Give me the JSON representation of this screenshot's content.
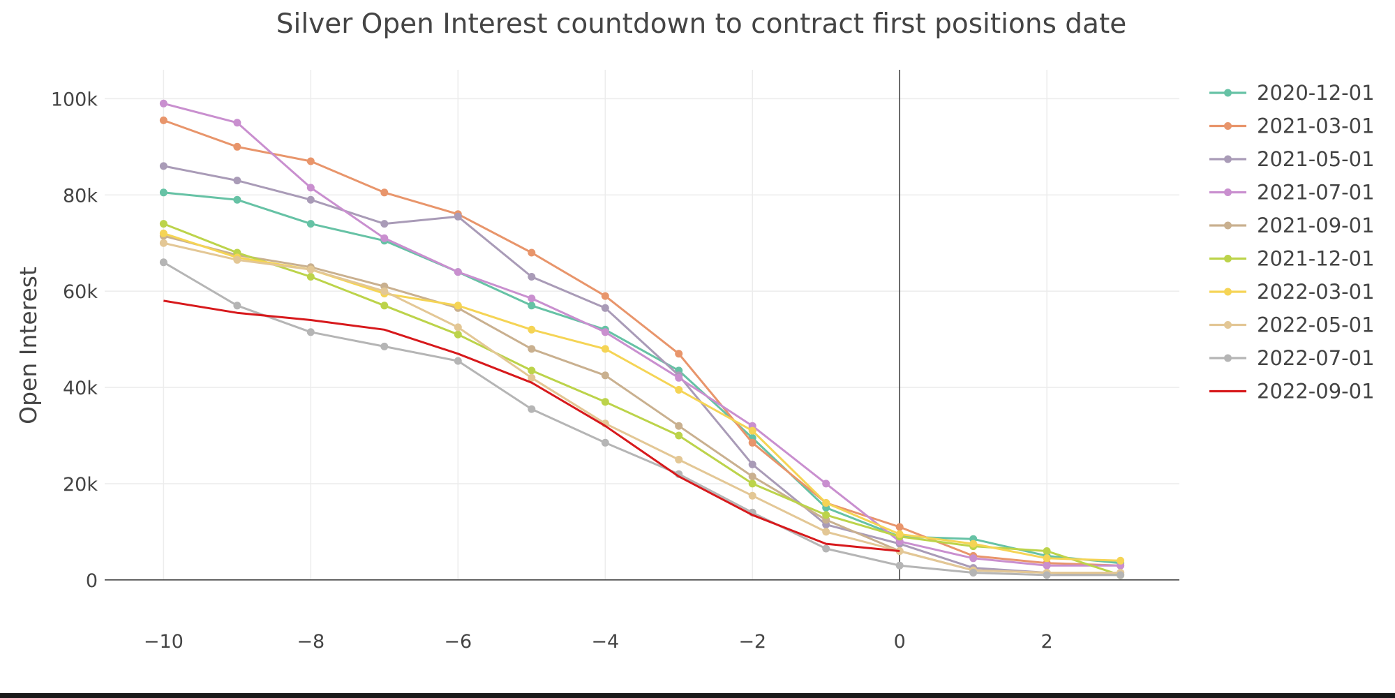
{
  "chart_data": {
    "type": "line",
    "title": "Silver Open Interest countdown to contract first positions date",
    "xlabel": "",
    "ylabel": "Open Interest",
    "xlim": [
      -10.8,
      3.8
    ],
    "ylim": [
      -8000,
      106000
    ],
    "x_ticks": [
      -10,
      -8,
      -6,
      -4,
      -2,
      0,
      2
    ],
    "x_tick_labels": [
      "−10",
      "−8",
      "−6",
      "−4",
      "−2",
      "0",
      "2"
    ],
    "y_ticks": [
      0,
      20000,
      40000,
      60000,
      80000,
      100000
    ],
    "y_tick_labels": [
      "0",
      "20k",
      "40k",
      "60k",
      "80k",
      "100k"
    ],
    "grid": true,
    "legend_position": "right",
    "x": [
      -10,
      -9,
      -8,
      -7,
      -6,
      -5,
      -4,
      -3,
      -2,
      -1,
      0,
      1,
      2,
      3
    ],
    "series": [
      {
        "name": "2020-12-01",
        "color": "#66c2a5",
        "markers": true,
        "values": [
          80500,
          79000,
          74000,
          70500,
          64000,
          57000,
          52000,
          43500,
          29500,
          15000,
          9000,
          8500,
          5000,
          3500
        ]
      },
      {
        "name": "2021-03-01",
        "color": "#e8956b",
        "markers": true,
        "values": [
          95500,
          90000,
          87000,
          80500,
          76000,
          68000,
          59000,
          47000,
          28500,
          16000,
          11000,
          5000,
          3500,
          3000
        ]
      },
      {
        "name": "2021-05-01",
        "color": "#a99bb7",
        "markers": true,
        "values": [
          86000,
          83000,
          79000,
          74000,
          75500,
          63000,
          56500,
          42500,
          24000,
          11500,
          7500,
          2500,
          1500,
          1500
        ]
      },
      {
        "name": "2021-07-01",
        "color": "#c98fcf",
        "markers": true,
        "values": [
          99000,
          95000,
          81500,
          71000,
          64000,
          58500,
          51500,
          42000,
          32000,
          20000,
          8000,
          4500,
          3000,
          3000
        ]
      },
      {
        "name": "2021-09-01",
        "color": "#c9b08f",
        "markers": true,
        "values": [
          71500,
          67500,
          65000,
          61000,
          56500,
          48000,
          42500,
          32000,
          21500,
          12500,
          6000,
          2000,
          1500,
          1000
        ]
      },
      {
        "name": "2021-12-01",
        "color": "#bcd34a",
        "markers": true,
        "values": [
          74000,
          68000,
          63000,
          57000,
          51000,
          43500,
          37000,
          30000,
          20000,
          13500,
          9000,
          7000,
          6000,
          1000
        ]
      },
      {
        "name": "2022-03-01",
        "color": "#f5d455",
        "markers": true,
        "values": [
          72000,
          67000,
          64500,
          59500,
          57000,
          52000,
          48000,
          39500,
          31000,
          16000,
          9500,
          7500,
          4500,
          4000
        ]
      },
      {
        "name": "2022-05-01",
        "color": "#e3c795",
        "markers": true,
        "values": [
          70000,
          66500,
          64500,
          60000,
          52500,
          42000,
          32500,
          25000,
          17500,
          10000,
          6000,
          2000,
          1500,
          1500
        ]
      },
      {
        "name": "2022-07-01",
        "color": "#b5b5b5",
        "markers": true,
        "values": [
          66000,
          57000,
          51500,
          48500,
          45500,
          35500,
          28500,
          22000,
          14000,
          6500,
          3000,
          1500,
          1000,
          1000
        ]
      },
      {
        "name": "2022-09-01",
        "color": "#d7191c",
        "markers": false,
        "values": [
          58000,
          55500,
          54000,
          52000,
          47000,
          41000,
          32000,
          21500,
          13500,
          7500,
          6000,
          null,
          null,
          null
        ]
      }
    ]
  }
}
